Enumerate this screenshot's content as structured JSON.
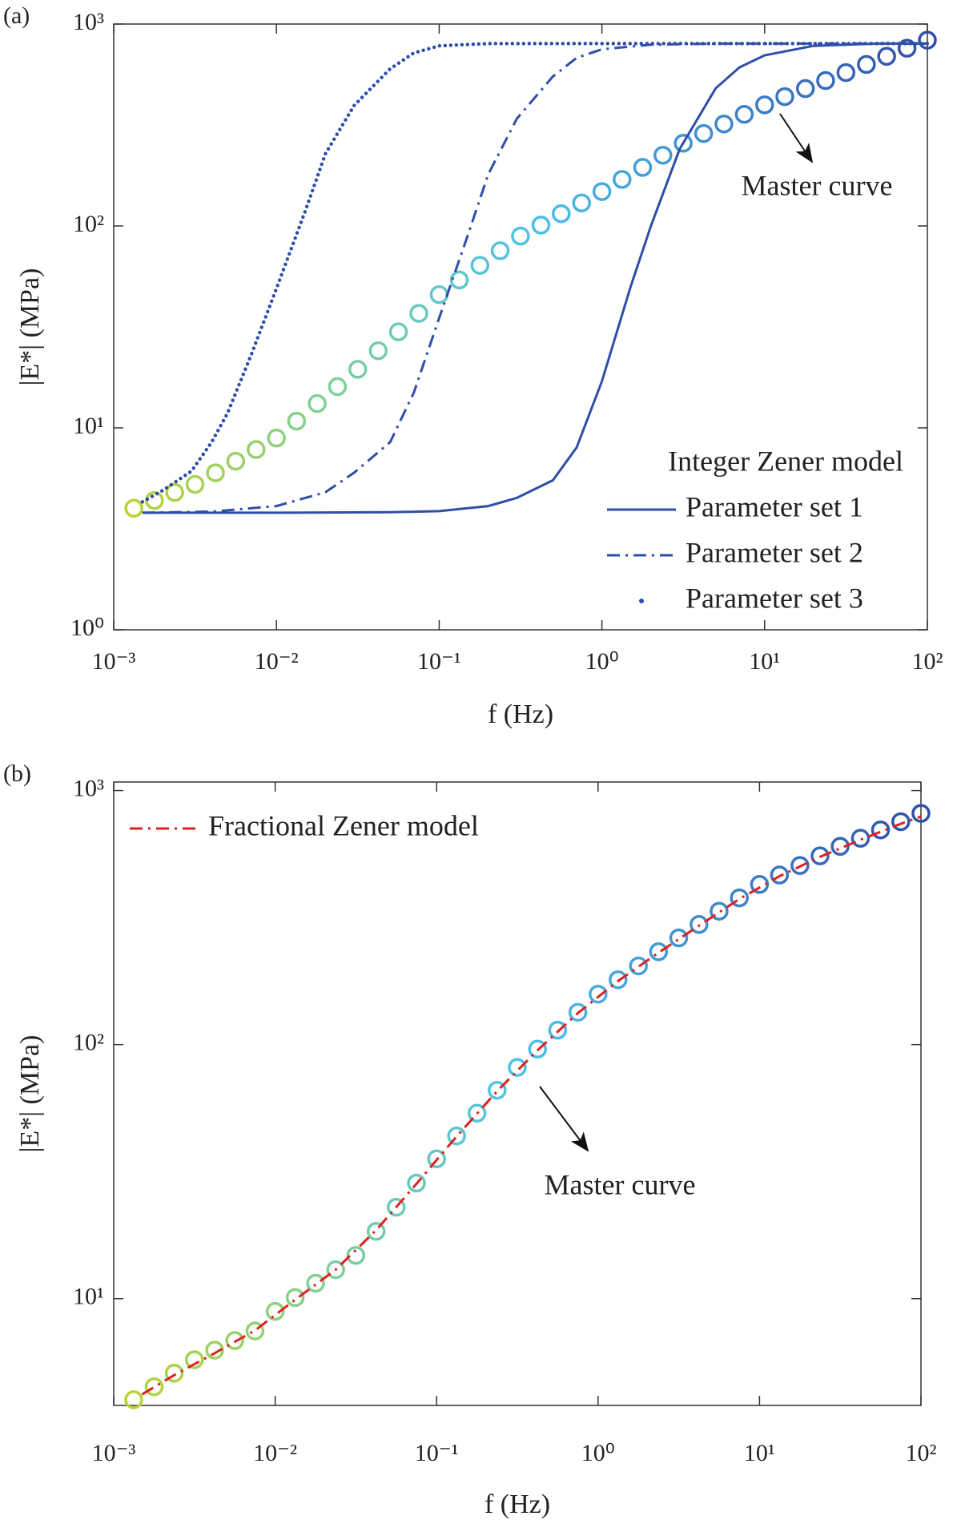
{
  "chart_data": [
    {
      "type": "line",
      "panel_label": "(a)",
      "xlabel": "f  (Hz)",
      "ylabel": "|E*|  (MPa)",
      "xscale": "log",
      "yscale": "log",
      "xlim": [
        0.001,
        100
      ],
      "ylim": [
        1,
        1000
      ],
      "xticks": [
        {
          "value": 0.001,
          "label": "10⁻³"
        },
        {
          "value": 0.01,
          "label": "10⁻²"
        },
        {
          "value": 0.1,
          "label": "10⁻¹"
        },
        {
          "value": 1,
          "label": "10⁰"
        },
        {
          "value": 10,
          "label": "10¹"
        },
        {
          "value": 100,
          "label": "10²"
        }
      ],
      "yticks": [
        {
          "value": 1,
          "label": "10⁰"
        },
        {
          "value": 10,
          "label": "10¹"
        },
        {
          "value": 100,
          "label": "10²"
        },
        {
          "value": 1000,
          "label": "10³"
        }
      ],
      "legend_title": "Integer Zener model",
      "legend": "lower right",
      "grid": false,
      "annotations": [
        {
          "text": "Master curve"
        }
      ],
      "series": [
        {
          "marker": "circle",
          "colors": [
            "#b8d432",
            "#7fcf9c",
            "#4cc2e8",
            "#3f86cc",
            "#2f4ea8"
          ],
          "x": [
            0.00133,
            0.00178,
            0.00237,
            0.00316,
            0.00422,
            0.00562,
            0.0075,
            0.01,
            0.0133,
            0.0178,
            0.0237,
            0.0316,
            0.0422,
            0.0562,
            0.075,
            0.1,
            0.133,
            0.178,
            0.237,
            0.316,
            0.422,
            0.562,
            0.75,
            1,
            1.33,
            1.78,
            2.37,
            3.16,
            4.22,
            5.62,
            7.5,
            10,
            13.3,
            17.8,
            23.7,
            31.6,
            42.2,
            56.2,
            75,
            100
          ],
          "values": [
            4.0,
            4.37,
            4.79,
            5.25,
            5.99,
            6.84,
            7.81,
            8.91,
            10.8,
            13.2,
            16.0,
            19.5,
            24.1,
            29.9,
            36.9,
            45.7,
            54.0,
            63.8,
            75.4,
            89.1,
            101,
            115,
            130,
            148,
            170,
            195,
            224,
            257,
            287,
            320,
            357,
            398,
            437,
            479,
            525,
            575,
            631,
            692,
            759,
            832
          ]
        },
        {
          "name": "Parameter set 1",
          "color": "#2f4ea8",
          "line_style": "solid",
          "x": [
            0.0015,
            0.01,
            0.05,
            0.1,
            0.2,
            0.3,
            0.5,
            0.7,
            1,
            1.5,
            2,
            3,
            5,
            7,
            10,
            20,
            50,
            100
          ],
          "values": [
            3.8,
            3.8,
            3.82,
            3.87,
            4.1,
            4.5,
            5.5,
            8,
            17,
            50,
            100,
            240,
            480,
            610,
            700,
            780,
            800,
            800
          ]
        },
        {
          "name": "Parameter set 2",
          "color": "#2f4ea8",
          "line_style": "dashdot",
          "x": [
            0.0015,
            0.004,
            0.01,
            0.02,
            0.03,
            0.05,
            0.07,
            0.1,
            0.15,
            0.2,
            0.3,
            0.5,
            0.7,
            1,
            2,
            5,
            10,
            100
          ],
          "values": [
            3.8,
            3.85,
            4.1,
            4.8,
            6,
            8.5,
            15,
            35,
            90,
            180,
            340,
            550,
            680,
            750,
            790,
            800,
            800,
            800
          ]
        },
        {
          "name": "Parameter set 3",
          "color": "#2f4ea8",
          "line_style": "dot",
          "x": [
            0.0015,
            0.002,
            0.003,
            0.004,
            0.005,
            0.007,
            0.01,
            0.015,
            0.02,
            0.03,
            0.05,
            0.07,
            0.1,
            0.2,
            1,
            10,
            100
          ],
          "values": [
            4.3,
            4.9,
            6.1,
            8.5,
            11.8,
            23,
            49,
            118,
            228,
            395,
            600,
            720,
            780,
            800,
            800,
            800,
            800
          ]
        }
      ]
    },
    {
      "type": "line",
      "panel_label": "(b)",
      "xlabel": "f  (Hz)",
      "ylabel": "|E*|  (MPa)",
      "xscale": "log",
      "yscale": "log",
      "xlim": [
        0.001,
        100
      ],
      "ylim": [
        3.8,
        1080
      ],
      "xticks": [
        {
          "value": 0.001,
          "label": "10⁻³"
        },
        {
          "value": 0.01,
          "label": "10⁻²"
        },
        {
          "value": 0.1,
          "label": "10⁻¹"
        },
        {
          "value": 1,
          "label": "10⁰"
        },
        {
          "value": 10,
          "label": "10¹"
        },
        {
          "value": 100,
          "label": "10²"
        }
      ],
      "yticks": [
        {
          "value": 10,
          "label": "10¹"
        },
        {
          "value": 100,
          "label": "10²"
        },
        {
          "value": 1000,
          "label": "10³"
        }
      ],
      "legend": "upper left",
      "grid": false,
      "annotations": [
        {
          "text": "Master curve"
        }
      ],
      "series": [
        {
          "marker": "circle",
          "colors": [
            "#b8d432",
            "#7fcf9c",
            "#4cc2e8",
            "#3f86cc",
            "#2f4ea8"
          ],
          "x": [
            0.00133,
            0.00178,
            0.00237,
            0.00316,
            0.00422,
            0.00562,
            0.0075,
            0.01,
            0.0133,
            0.0178,
            0.0237,
            0.0316,
            0.0422,
            0.0562,
            0.075,
            0.1,
            0.133,
            0.178,
            0.237,
            0.316,
            0.422,
            0.562,
            0.75,
            1,
            1.33,
            1.78,
            2.37,
            3.16,
            4.22,
            5.62,
            7.5,
            10,
            13.3,
            17.8,
            23.7,
            31.6,
            42.2,
            56.2,
            75,
            100
          ],
          "values": [
            4.0,
            4.5,
            5.09,
            5.75,
            6.27,
            6.84,
            7.46,
            8.91,
            10.1,
            11.5,
            13.0,
            14.8,
            18.4,
            22.9,
            28.5,
            35.5,
            43.7,
            53.7,
            66.1,
            81.3,
            96.0,
            114,
            134,
            158,
            180,
            204,
            232,
            263,
            297,
            335,
            378,
            427,
            465,
            507,
            553,
            603,
            649,
            700,
            754,
            813
          ]
        },
        {
          "name": "Fractional Zener model",
          "color": "#e02020",
          "line_style": "dashdot",
          "x": [
            0.0015,
            0.00237,
            0.00422,
            0.0075,
            0.0133,
            0.0237,
            0.0422,
            0.075,
            0.133,
            0.237,
            0.422,
            0.75,
            1.33,
            2.37,
            4.22,
            7.5,
            13.3,
            23.7,
            42.2,
            75,
            100
          ],
          "values": [
            4.2,
            5.0,
            6.1,
            7.5,
            9.9,
            13.0,
            18.6,
            28.3,
            43.5,
            65.5,
            95,
            133,
            178,
            230,
            294,
            374,
            460,
            548,
            640,
            740,
            790
          ]
        }
      ]
    }
  ]
}
